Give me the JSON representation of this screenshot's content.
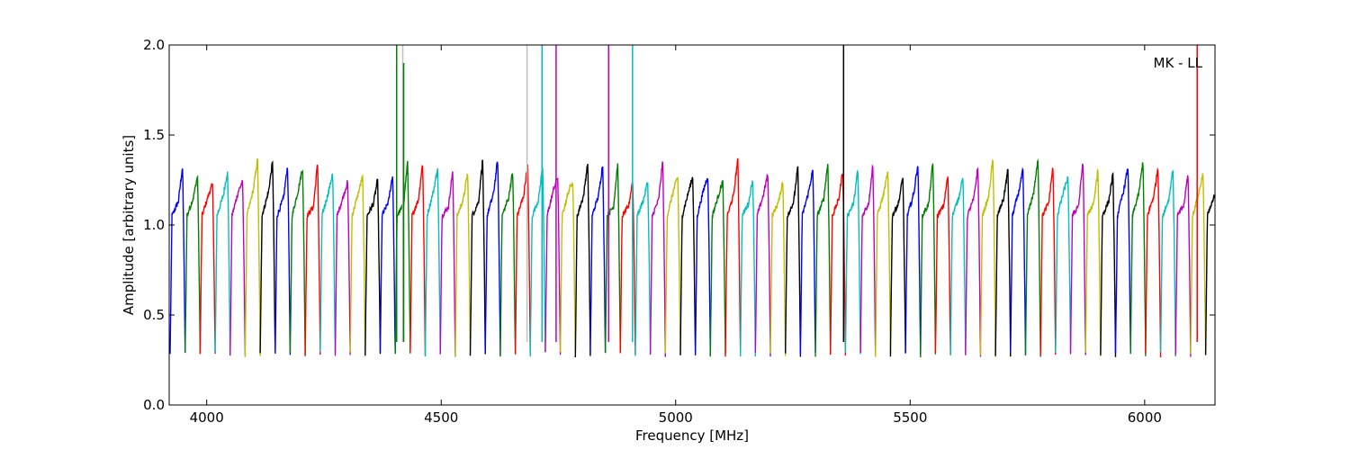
{
  "chart_data": {
    "type": "line",
    "annotation": "MK - LL",
    "xlabel": "Frequency [MHz]",
    "ylabel": "Amplitude [arbitrary units]",
    "xlim": [
      3920,
      6150
    ],
    "ylim": [
      0.0,
      2.0
    ],
    "xticks": [
      4000,
      4500,
      5000,
      5500,
      6000
    ],
    "yticks": [
      0.0,
      0.5,
      1.0,
      1.5,
      2.0
    ],
    "xtick_labels": [
      "4000",
      "4500",
      "5000",
      "5500",
      "6000"
    ],
    "ytick_labels": [
      "0.0",
      "0.5",
      "1.0",
      "1.5",
      "2.0"
    ],
    "grid": false,
    "color_cycle": [
      "#0000ff",
      "#008000",
      "#ff0000",
      "#00bfbf",
      "#bf00bf",
      "#bfbf00",
      "#000000"
    ],
    "background_trace_color": "#c0c0c0",
    "channel_width_mhz": 32,
    "first_channel_start_mhz": 3922,
    "num_channels": 70,
    "band_shape": {
      "edge_low": 0.28,
      "rise_top": 1.05,
      "peak": 1.3,
      "interior": 1.15
    },
    "spikes": [
      {
        "x": 4405,
        "y_top": 2.0,
        "color": "#008000"
      },
      {
        "x": 4418,
        "y_top": 2.0,
        "color": "#c0c0c0"
      },
      {
        "x": 4420,
        "y_top": 1.9,
        "color": "#008000"
      },
      {
        "x": 4683,
        "y_top": 2.0,
        "color": "#c0c0c0"
      },
      {
        "x": 4715,
        "y_top": 2.0,
        "color": "#00bfbf"
      },
      {
        "x": 4745,
        "y_top": 2.0,
        "color": "#bf00bf"
      },
      {
        "x": 4857,
        "y_top": 2.0,
        "color": "#bf00bf"
      },
      {
        "x": 4908,
        "y_top": 2.0,
        "color": "#00bfbf"
      },
      {
        "x": 5358,
        "y_top": 2.0,
        "color": "#000000"
      },
      {
        "x": 6112,
        "y_top": 2.0,
        "color": "#ff0000"
      }
    ]
  }
}
